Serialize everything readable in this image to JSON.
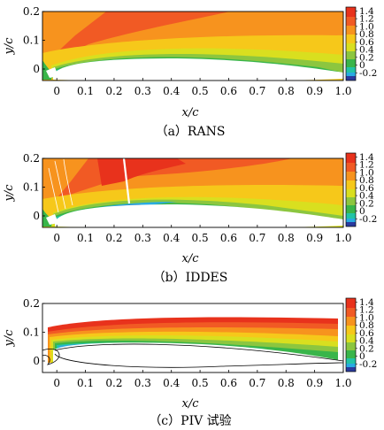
{
  "panels": [
    {
      "id": "rans",
      "caption": "（a）RANS",
      "xlabel": "x/c",
      "ylabel": "y/c",
      "x_ticks": [
        "0",
        "0.1",
        "0.2",
        "0.3",
        "0.4",
        "0.5",
        "0.6",
        "0.7",
        "0.8",
        "0.9",
        "1.0"
      ],
      "y_ticks": [
        "0.2",
        "0.1",
        "0"
      ],
      "colorbar_ticks": [
        "1.4",
        "1.2",
        "1.0",
        "0.8",
        "0.6",
        "0.4",
        "0.2",
        "0",
        "-0.2"
      ]
    },
    {
      "id": "iddes",
      "caption": "（b）IDDES",
      "xlabel": "x/c",
      "ylabel": "y/c",
      "x_ticks": [
        "0",
        "0.1",
        "0.2",
        "0.3",
        "0.4",
        "0.5",
        "0.6",
        "0.7",
        "0.8",
        "0.9",
        "1.0"
      ],
      "y_ticks": [
        "0.2",
        "0.1",
        "0"
      ],
      "colorbar_ticks": [
        "1.4",
        "1.2",
        "1.0",
        "0.8",
        "0.6",
        "0.4",
        "0.2",
        "0",
        "-0.2"
      ]
    },
    {
      "id": "piv",
      "caption": "（c）PIV 试验",
      "xlabel": "x/c",
      "ylabel": "y/c",
      "x_ticks": [
        "0",
        "0.1",
        "0.2",
        "0.3",
        "0.4",
        "0.5",
        "0.6",
        "0.7",
        "0.8",
        "0.9",
        "1.0"
      ],
      "y_ticks": [
        "0.2",
        "0.1",
        "0"
      ],
      "colorbar_ticks": [
        "1.4",
        "1.2",
        "1.0",
        "0.8",
        "0.6",
        "0.4",
        "0.2",
        "0",
        "-0.2"
      ]
    }
  ],
  "chart_data": [
    {
      "type": "heatmap",
      "panel": "rans",
      "x_range": [
        -0.05,
        1.0
      ],
      "y_range": [
        -0.04,
        0.2
      ],
      "colorbar_range": [
        -0.4,
        1.5
      ],
      "colorbar_levels": [
        1.4,
        1.2,
        1.0,
        0.8,
        0.6,
        0.4,
        0.2,
        0,
        -0.2
      ]
    },
    {
      "type": "heatmap",
      "panel": "iddes",
      "x_range": [
        -0.05,
        1.0
      ],
      "y_range": [
        -0.04,
        0.2
      ],
      "colorbar_range": [
        -0.4,
        1.5
      ],
      "colorbar_levels": [
        1.4,
        1.2,
        1.0,
        0.8,
        0.6,
        0.4,
        0.2,
        0,
        -0.2
      ]
    },
    {
      "type": "heatmap",
      "panel": "piv",
      "x_range": [
        -0.05,
        1.0
      ],
      "y_range": [
        -0.04,
        0.2
      ],
      "colorbar_range": [
        -0.4,
        1.5
      ],
      "colorbar_levels": [
        1.4,
        1.2,
        1.0,
        0.8,
        0.6,
        0.4,
        0.2,
        0,
        -0.2
      ]
    }
  ],
  "colors": {
    "c14": "#e8321c",
    "c13": "#f15a24",
    "c12": "#f7931e",
    "c10": "#f6c81a",
    "c08": "#d9df1f",
    "c06": "#8cc63f",
    "c04": "#39b54a",
    "c02": "#22c4a6",
    "c00": "#29abe2",
    "cm02": "#1c75bc",
    "cm04": "#2a3a9e"
  }
}
